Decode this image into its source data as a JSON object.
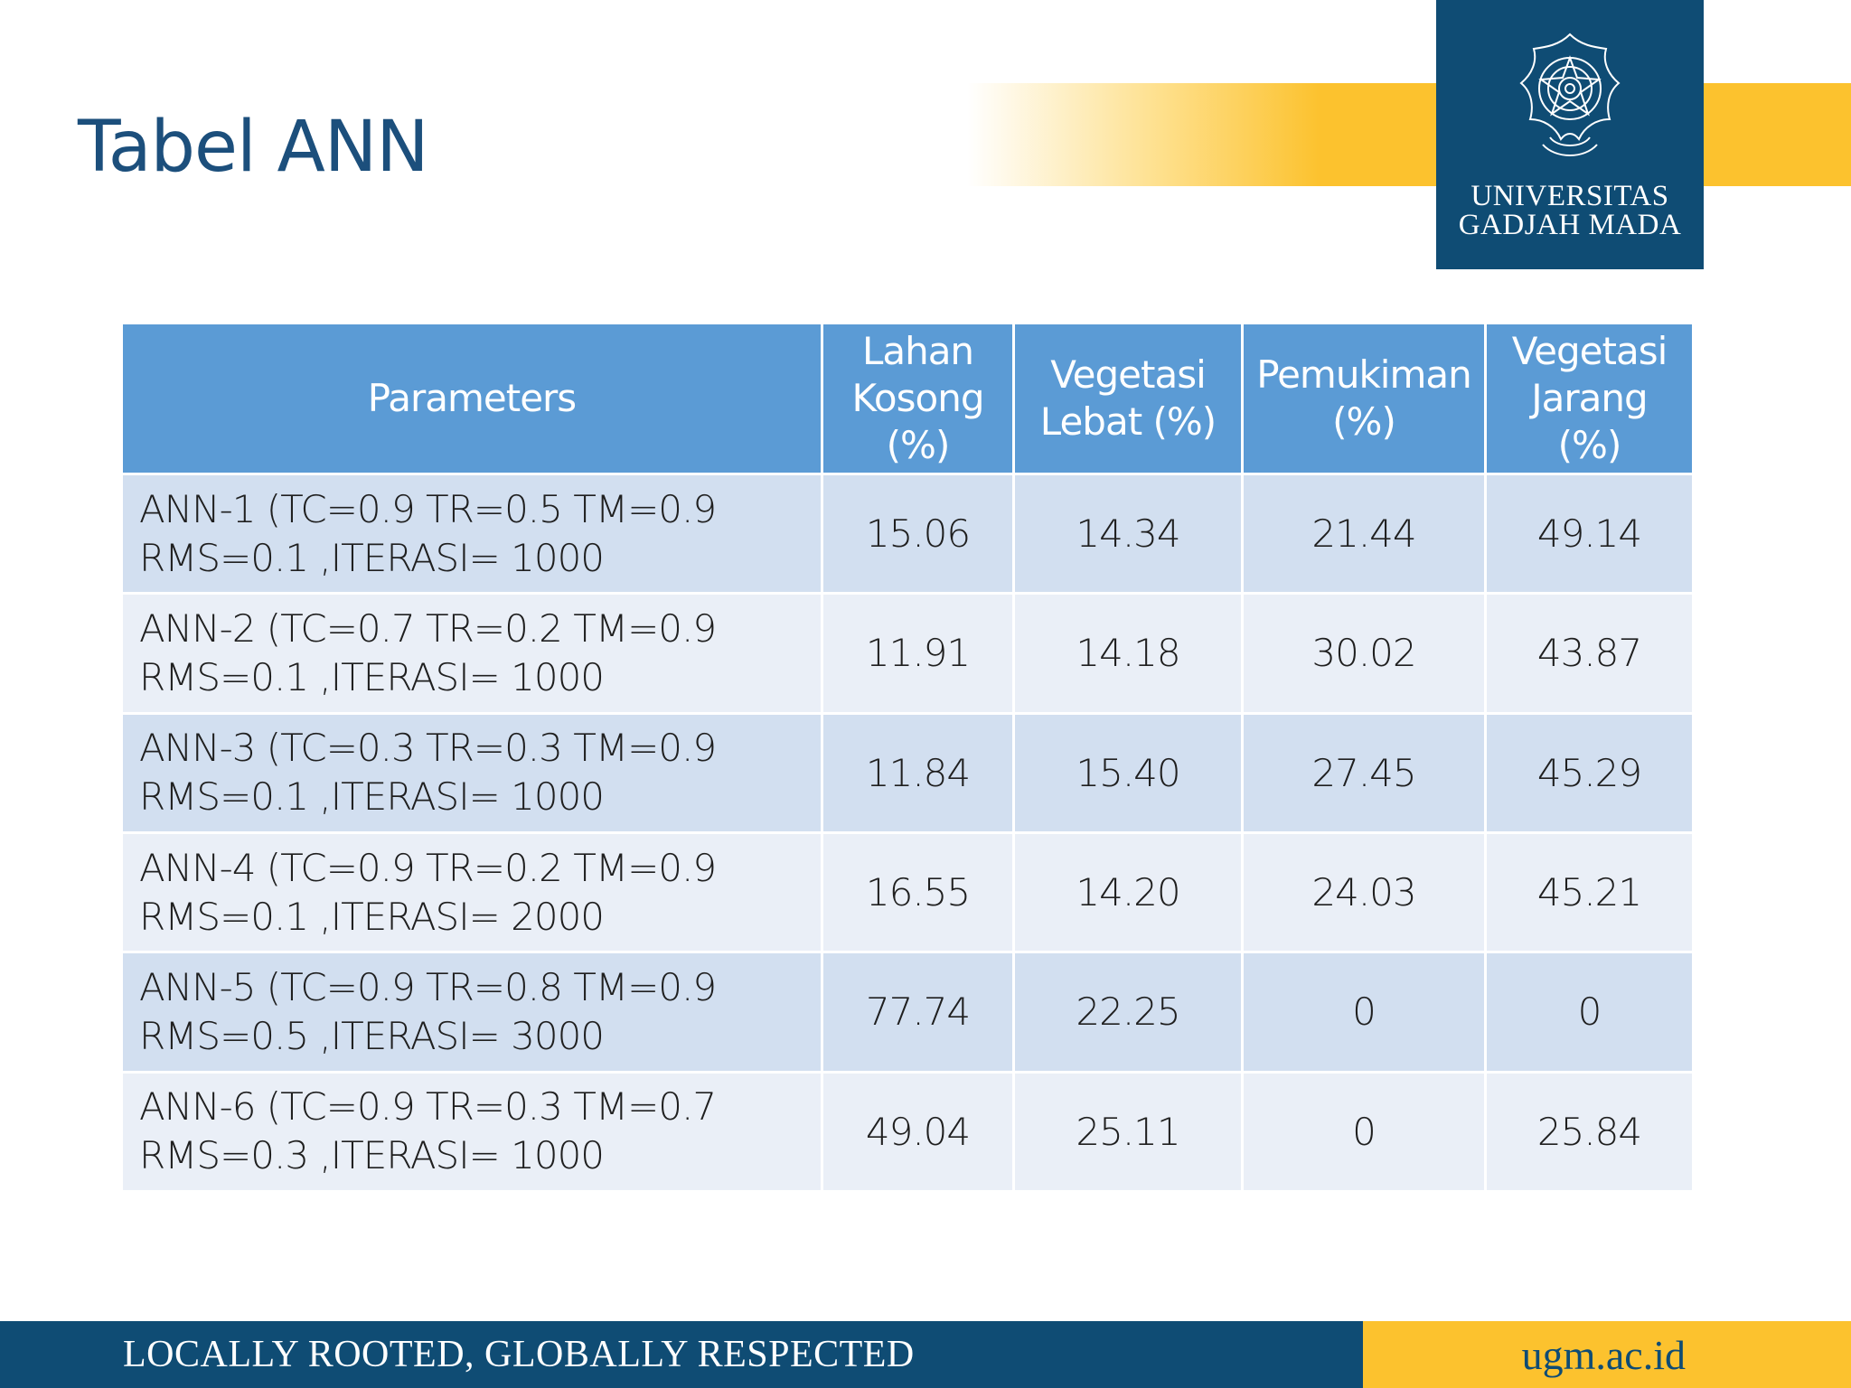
{
  "slide": {
    "title": "Tabel ANN"
  },
  "logo": {
    "icon": "ugm-emblem-icon",
    "line1": "UNIVERSITAS",
    "line2": "GADJAH MADA"
  },
  "colors": {
    "navy": "#0f4c74",
    "gold": "#fcc22e",
    "header_blue": "#5b9bd5",
    "row_dark": "#d2dff0",
    "row_light": "#eaeff7"
  },
  "table": {
    "headers": [
      [
        "Parameters"
      ],
      [
        "Lahan",
        "Kosong",
        "(%)"
      ],
      [
        "Vegetasi",
        "Lebat (%)"
      ],
      [
        "Pemukiman",
        "(%)"
      ],
      [
        "Vegetasi",
        "Jarang",
        "(%)"
      ]
    ],
    "rows": [
      {
        "param": [
          "ANN-1 (TC=0.9 TR=0.5 TM=0.9",
          "RMS=0.1 ,ITERASI= 1000"
        ],
        "values": [
          "15.06",
          "14.34",
          "21.44",
          "49.14"
        ]
      },
      {
        "param": [
          "ANN-2 (TC=0.7 TR=0.2 TM=0.9",
          "RMS=0.1 ,ITERASI= 1000"
        ],
        "values": [
          "11.91",
          "14.18",
          "30.02",
          "43.87"
        ]
      },
      {
        "param": [
          "ANN-3 (TC=0.3 TR=0.3 TM=0.9",
          "RMS=0.1 ,ITERASI= 1000"
        ],
        "values": [
          "11.84",
          "15.40",
          "27.45",
          "45.29"
        ]
      },
      {
        "param": [
          "ANN-4 (TC=0.9 TR=0.2 TM=0.9",
          "RMS=0.1 ,ITERASI= 2000"
        ],
        "values": [
          "16.55",
          "14.20",
          "24.03",
          "45.21"
        ]
      },
      {
        "param": [
          "ANN-5 (TC=0.9 TR=0.8 TM=0.9",
          "RMS=0.5 ,ITERASI= 3000"
        ],
        "values": [
          "77.74",
          "22.25",
          "0",
          "0"
        ]
      },
      {
        "param": [
          "ANN-6 (TC=0.9 TR=0.3 TM=0.7",
          "RMS=0.3 ,ITERASI= 1000"
        ],
        "values": [
          "49.04",
          "25.11",
          "0",
          "25.84"
        ]
      }
    ]
  },
  "footer": {
    "slogan": "LOCALLY ROOTED, GLOBALLY RESPECTED",
    "website": "ugm.ac.id"
  }
}
